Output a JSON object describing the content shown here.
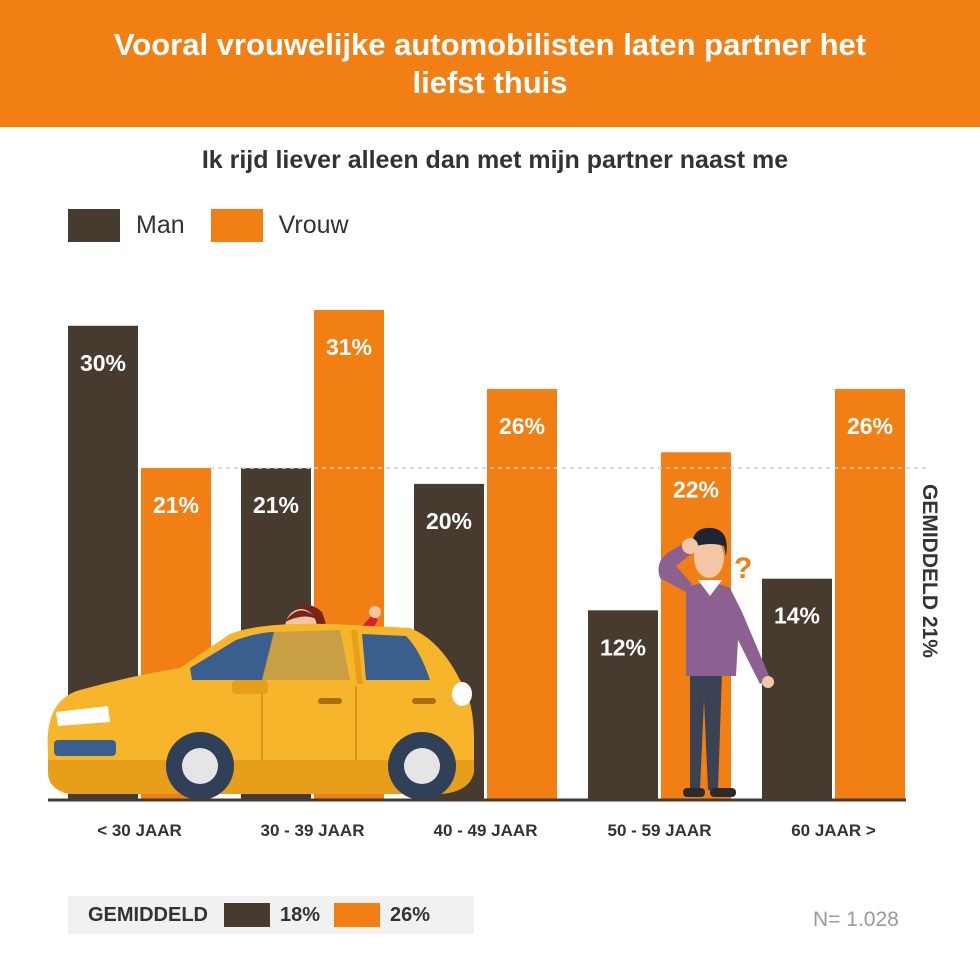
{
  "header": {
    "title": "Vooral vrouwelijke automobilisten laten partner het liefst thuis"
  },
  "colors": {
    "man": "#473b30",
    "vrouw": "#f27f13",
    "header": "#f27f13",
    "avg_line": "#cfcfcf"
  },
  "legend": [
    {
      "label": "Man",
      "color": "#473b30"
    },
    {
      "label": "Vrouw",
      "color": "#f27f13"
    }
  ],
  "illustrations": {
    "car": "yellow-car-with-waving-woman",
    "man": "confused-man-with-question-mark"
  },
  "chart_data": {
    "type": "bar",
    "title": "Ik rijd liever alleen dan met mijn partner naast me",
    "categories": [
      "< 30 JAAR",
      "30 - 39 JAAR",
      "40 - 49 JAAR",
      "50 - 59 JAAR",
      "60 JAAR >"
    ],
    "series": [
      {
        "name": "Man",
        "values": [
          30,
          21,
          20,
          12,
          14
        ],
        "labels": [
          "30%",
          "21%",
          "20%",
          "12%",
          "14%"
        ]
      },
      {
        "name": "Vrouw",
        "values": [
          21,
          31,
          26,
          22,
          26
        ],
        "labels": [
          "21%",
          "31%",
          "26%",
          "22%",
          "26%"
        ]
      }
    ],
    "reference_line": {
      "value": 21,
      "label": "GEMIDDELD 21%"
    },
    "ylim": [
      0,
      31
    ],
    "grid": false,
    "legend_position": "top-left"
  },
  "averages": {
    "label": "GEMIDDELD",
    "man": "18%",
    "vrouw": "26%"
  },
  "sample_size": "N= 1.028"
}
